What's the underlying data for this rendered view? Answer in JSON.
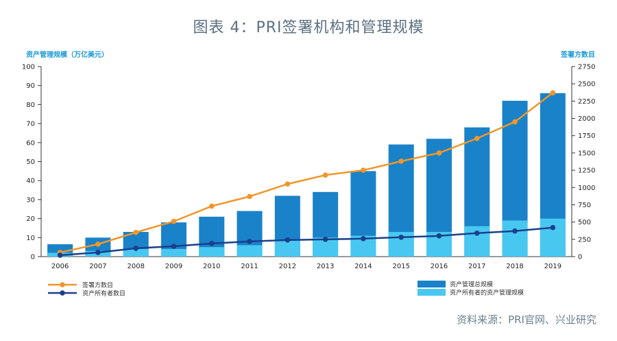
{
  "title": "图表 4：PRI签署机构和管理规模",
  "source": "资料来源：PRI官网、兴业研究",
  "chart_data": {
    "type": "bar",
    "categories": [
      "2006",
      "2007",
      "2008",
      "2009",
      "2010",
      "2011",
      "2012",
      "2013",
      "2014",
      "2015",
      "2016",
      "2017",
      "2018",
      "2019"
    ],
    "left_axis": {
      "label": "资产管理规模（万亿美元）",
      "ticks": [
        0,
        10,
        20,
        30,
        40,
        50,
        60,
        70,
        80,
        90,
        100
      ],
      "ylim": [
        0,
        100
      ]
    },
    "right_axis": {
      "label": "签署方数目",
      "ticks": [
        0,
        250,
        500,
        750,
        1000,
        1250,
        1500,
        1750,
        2000,
        2250,
        2500,
        2750
      ],
      "ylim": [
        0,
        2750
      ]
    },
    "series": [
      {
        "name": "资产管理总规模",
        "type": "bar",
        "axis": "left",
        "color": "#1a82c8",
        "values": [
          6.5,
          10,
          13,
          18,
          21,
          24,
          32,
          34,
          45,
          59,
          62,
          68,
          82,
          86
        ]
      },
      {
        "name": "资产所有者的资产管理规模",
        "type": "bar",
        "axis": "left",
        "color": "#48c8f0",
        "values": [
          2,
          3,
          4,
          4,
          5,
          6,
          9,
          10,
          11,
          13,
          13,
          16,
          19,
          20
        ]
      },
      {
        "name": "签署方数目",
        "type": "line",
        "axis": "right",
        "color": "#f0962a",
        "values": [
          60,
          180,
          350,
          510,
          730,
          870,
          1050,
          1180,
          1250,
          1380,
          1500,
          1710,
          1950,
          2370
        ]
      },
      {
        "name": "资产所有者数目",
        "type": "line",
        "axis": "right",
        "color": "#1a3f8c",
        "values": [
          20,
          60,
          120,
          150,
          190,
          220,
          240,
          250,
          260,
          280,
          300,
          340,
          370,
          420
        ]
      }
    ],
    "grid": false,
    "legend_position": "bottom"
  }
}
